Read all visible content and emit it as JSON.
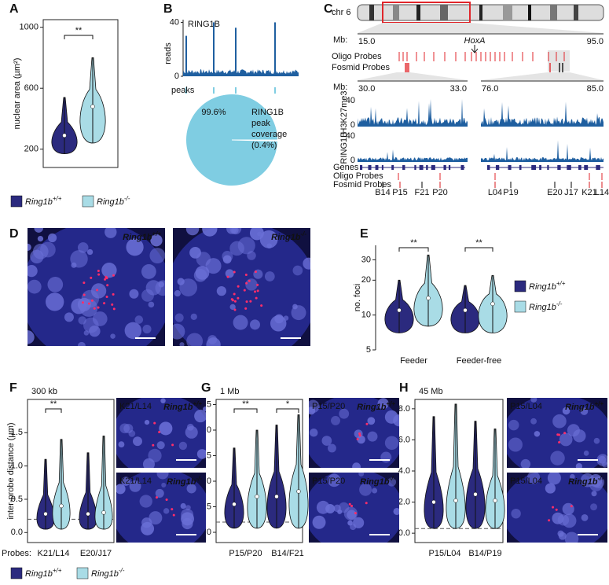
{
  "panel_labels": [
    "A",
    "B",
    "C",
    "D",
    "E",
    "F",
    "G",
    "H"
  ],
  "legend": [
    {
      "name": "Ring1b",
      "superscript": "+/+",
      "color": "#2b2a7e"
    },
    {
      "name": "Ring1b",
      "superscript": "-/-",
      "color": "#a9dce6"
    }
  ],
  "probes_label": "Probes:",
  "A": {
    "type": "violin",
    "y_label": "nuclear area (µm²)",
    "ylim": [
      80,
      1050
    ],
    "yticks": [
      200,
      600,
      1000
    ],
    "categories": [
      null
    ],
    "series": [
      {
        "median": [
          290
        ],
        "min": [
          170
        ],
        "max": [
          540
        ]
      },
      {
        "median": [
          480
        ],
        "min": [
          240
        ],
        "max": [
          800
        ]
      }
    ],
    "significance": [
      "**"
    ]
  },
  "B": {
    "track_label": "RING1B",
    "y_label": "reads",
    "ylim": [
      0,
      42
    ],
    "yticks": [
      0,
      40
    ],
    "peak_label": "peaks",
    "peak_heights": [
      30,
      40,
      36,
      40
    ],
    "track_color": "#1f5fa0",
    "pie": {
      "type": "pie",
      "values": [
        99.6,
        0.4
      ],
      "value_labels": [
        "99.6%",
        "(0.4%)"
      ],
      "caption": [
        "RING1B",
        "peak",
        "coverage"
      ],
      "colors": [
        "#7fcde2",
        "#ffffff"
      ]
    }
  },
  "C": {
    "chromosome": "chr 6",
    "mb_label": "Mb:",
    "top_ticks": [
      "15.0",
      "95.0"
    ],
    "gene": "HoxA",
    "oligo_label": "Oligo Probes",
    "fosmid_label": "Fosmid Probes",
    "zoom_ticks": [
      "30.0",
      "33.0",
      "76.0",
      "85.0"
    ],
    "tracks": [
      {
        "name": "H3K27me3",
        "yticks": [
          40,
          0
        ]
      },
      {
        "name": "RING1B",
        "yticks": [
          40,
          0
        ]
      }
    ],
    "rows": [
      "Genes",
      "Oligo Probes",
      "Fosmid Probes"
    ],
    "probes": [
      {
        "name": "B14",
        "color": "#000000"
      },
      {
        "name": "P15",
        "color": "#d7191c"
      },
      {
        "name": "F21",
        "color": "#000000"
      },
      {
        "name": "P20",
        "color": "#d7191c"
      },
      {
        "name": "L04",
        "color": "#d7191c"
      },
      {
        "name": "P19",
        "color": "#000000"
      },
      {
        "name": "E20",
        "color": "#000000"
      },
      {
        "name": "J17",
        "color": "#000000"
      },
      {
        "name": "K21",
        "color": "#d7191c"
      },
      {
        "name": "L14",
        "color": "#d7191c"
      }
    ]
  },
  "D": {
    "images": [
      {
        "label": "Ring1b",
        "superscript": "+/+"
      },
      {
        "label": "Ring1b",
        "superscript": "-/-"
      }
    ]
  },
  "E": {
    "type": "violin",
    "y_label": "no. foci",
    "log": true,
    "ylim": [
      5,
      40
    ],
    "yticks": [
      5,
      10,
      20,
      30
    ],
    "categories": [
      "Feeder",
      "Feeder-free"
    ],
    "series": [
      {
        "median": [
          11,
          11
        ],
        "min": [
          7,
          7
        ],
        "max": [
          20,
          18
        ]
      },
      {
        "median": [
          14,
          12.5
        ],
        "min": [
          8,
          7
        ],
        "max": [
          33,
          22
        ]
      }
    ],
    "significance": [
      "**",
      "**"
    ]
  },
  "F": {
    "type": "violin",
    "title": "300 kb",
    "y_label": "inter-probe distance (µm)",
    "ylim": [
      -0.15,
      2.0
    ],
    "yticks": [
      {
        "value": 0,
        "label": "0.0"
      },
      0.5,
      {
        "value": 1,
        "label": "1.0"
      },
      1.5
    ],
    "reference_line": 0.2,
    "categories": [
      "K21/L14",
      "E20/J17"
    ],
    "category_colors": [
      "#d7191c",
      "#000000"
    ],
    "series": [
      {
        "median": [
          0.28,
          0.28
        ],
        "min": [
          0.05,
          0.05
        ],
        "max": [
          1.1,
          1.2
        ]
      },
      {
        "median": [
          0.4,
          0.3
        ],
        "min": [
          0.05,
          0.05
        ],
        "max": [
          1.4,
          1.45
        ]
      }
    ],
    "significance": [
      "**",
      null
    ],
    "images": [
      {
        "probe": "K21/L14",
        "label": "Ring1b",
        "superscript": "+/+"
      },
      {
        "probe": "K21/L14",
        "label": "Ring1b",
        "superscript": "-/-"
      }
    ]
  },
  "G": {
    "type": "violin",
    "title": "1 Mb",
    "ylim": [
      -0.2,
      2.6
    ],
    "yticks": [
      {
        "value": 0,
        "label": "0.0"
      },
      0.5,
      {
        "value": 1,
        "label": "1.0"
      },
      1.5,
      {
        "value": 2,
        "label": "2.0"
      },
      2.5
    ],
    "reference_line": 0.2,
    "categories": [
      "P15/P20",
      "B14/F21"
    ],
    "category_colors": [
      "#d7191c",
      "#000000"
    ],
    "series": [
      {
        "median": [
          0.55,
          0.7
        ],
        "min": [
          0.08,
          0.08
        ],
        "max": [
          1.65,
          2.1
        ]
      },
      {
        "median": [
          0.7,
          0.8
        ],
        "min": [
          0.08,
          0.08
        ],
        "max": [
          2.0,
          2.3
        ]
      }
    ],
    "significance": [
      "**",
      "*"
    ],
    "images": [
      {
        "probe": "P15/P20",
        "label": "Ring1b",
        "superscript": "+/+"
      },
      {
        "probe": "P15/P20",
        "label": "Ring1b",
        "superscript": "-/-"
      }
    ]
  },
  "H": {
    "type": "violin",
    "title": "45 Mb",
    "ylim": [
      -0.6,
      8.6
    ],
    "yticks": [
      {
        "value": 0,
        "label": "0.0"
      },
      {
        "value": 2,
        "label": "2.0"
      },
      {
        "value": 4,
        "label": "4.0"
      },
      {
        "value": 6,
        "label": "6.0"
      },
      {
        "value": 8,
        "label": "8.0"
      }
    ],
    "reference_line": 0.3,
    "categories": [
      "P15/L04",
      "B14/P19"
    ],
    "category_colors": [
      "#d7191c",
      "#000000"
    ],
    "series": [
      {
        "median": [
          2.0,
          2.5
        ],
        "min": [
          0.3,
          0.3
        ],
        "max": [
          7.5,
          7.2
        ]
      },
      {
        "median": [
          2.1,
          2.1
        ],
        "min": [
          0.3,
          0.3
        ],
        "max": [
          8.3,
          6.7
        ]
      }
    ],
    "significance": [
      null,
      null
    ],
    "images": [
      {
        "probe": "P15/L04",
        "label": "Ring1b",
        "superscript": "+/+"
      },
      {
        "probe": "P15/L04",
        "label": "Ring1b",
        "superscript": "-/-"
      }
    ]
  }
}
